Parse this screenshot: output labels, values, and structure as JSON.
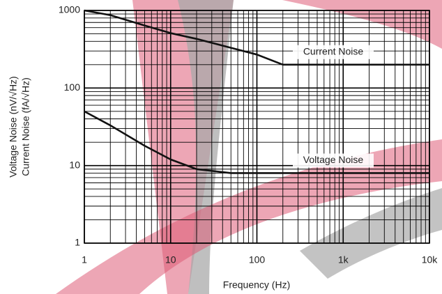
{
  "chart_data": {
    "type": "line",
    "xlabel": "Frequency (Hz)",
    "ylabel": [
      "Voltage Noise (nV/√Hz)",
      "Current Noise (fA/√Hz)"
    ],
    "x": [
      1,
      2,
      5,
      10,
      20,
      50,
      100,
      200,
      500,
      1000,
      10000
    ],
    "series": [
      {
        "name": "Current Noise",
        "color": "#111111",
        "values": [
          1000,
          870,
          640,
          510,
          430,
          330,
          270,
          200,
          200,
          200,
          200
        ]
      },
      {
        "name": "Voltage Noise",
        "color": "#111111",
        "values": [
          50,
          33,
          18,
          12,
          9,
          8,
          8,
          8,
          8,
          8,
          8
        ]
      }
    ],
    "xlim": [
      1,
      10000
    ],
    "ylim": [
      1,
      1000
    ],
    "xticks": [
      1,
      10,
      100,
      {
        "value": 1000,
        "label": "1k"
      },
      {
        "value": 10000,
        "label": "10k"
      }
    ],
    "yticks": [
      1,
      10,
      100,
      1000
    ],
    "xlog": true,
    "ylog": true,
    "grid": true,
    "minor_grid": true
  }
}
